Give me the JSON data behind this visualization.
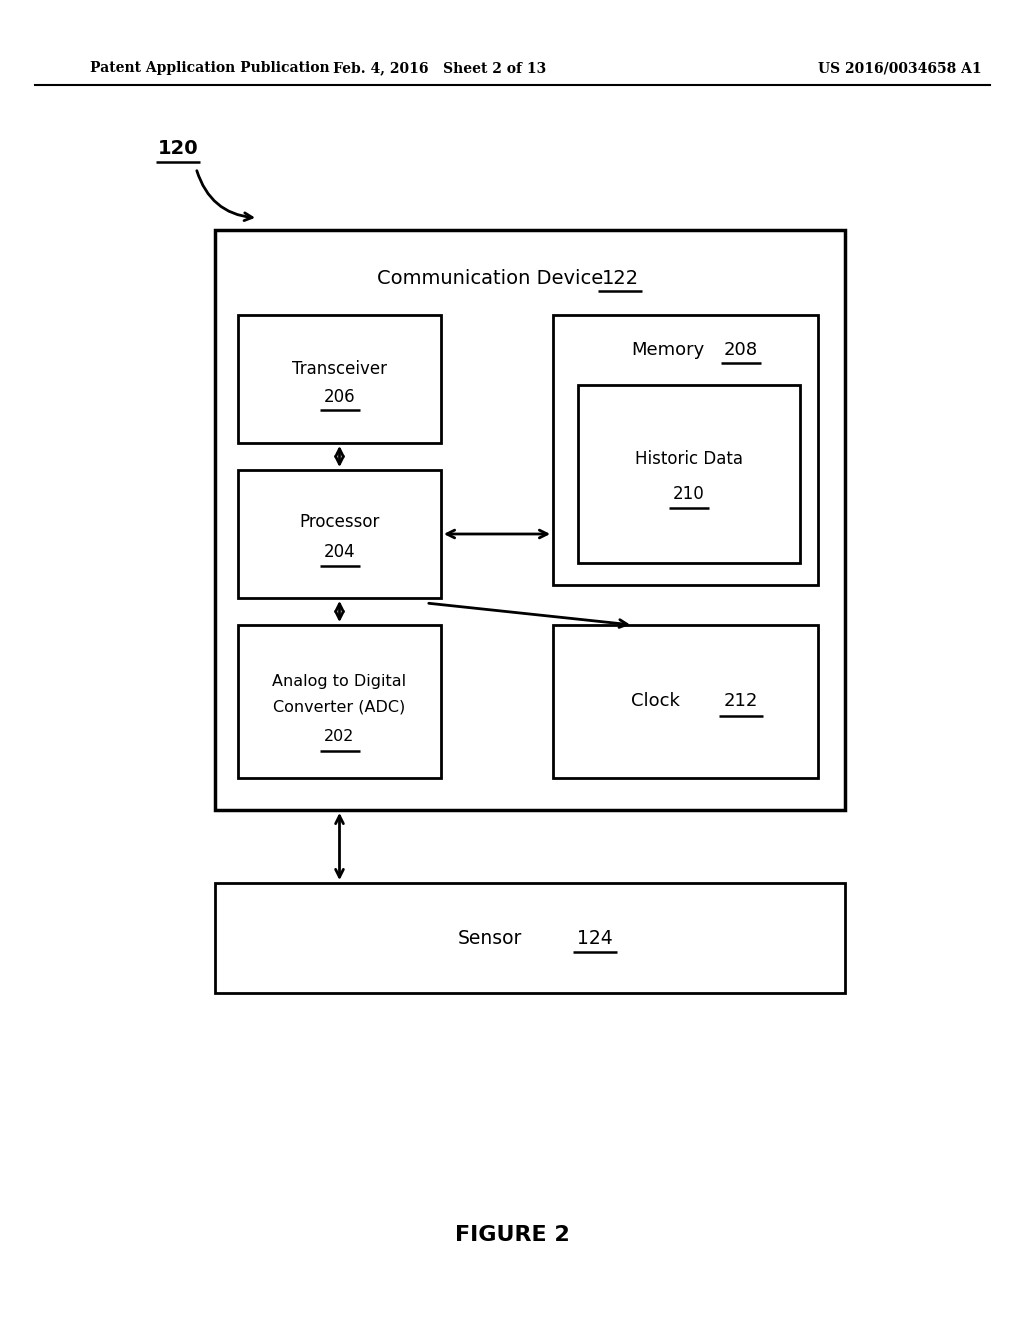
{
  "bg_color": "#ffffff",
  "header_left": "Patent Application Publication",
  "header_mid": "Feb. 4, 2016   Sheet 2 of 13",
  "header_right": "US 2016/0034658 A1",
  "figure_caption": "FIGURE 2",
  "comm_device_label": "Communication Device",
  "comm_device_num": "122",
  "transceiver_label": "Transceiver",
  "transceiver_num": "206",
  "memory_label": "Memory",
  "memory_num": "208",
  "historic_label": "Historic Data",
  "historic_num": "210",
  "processor_label": "Processor",
  "processor_num": "204",
  "adc_line1": "Analog to Digital",
  "adc_line2": "Converter (ADC)",
  "adc_num": "202",
  "clock_label": "Clock",
  "clock_num": "212",
  "sensor_label": "Sensor",
  "sensor_num": "124",
  "label_120": "120"
}
